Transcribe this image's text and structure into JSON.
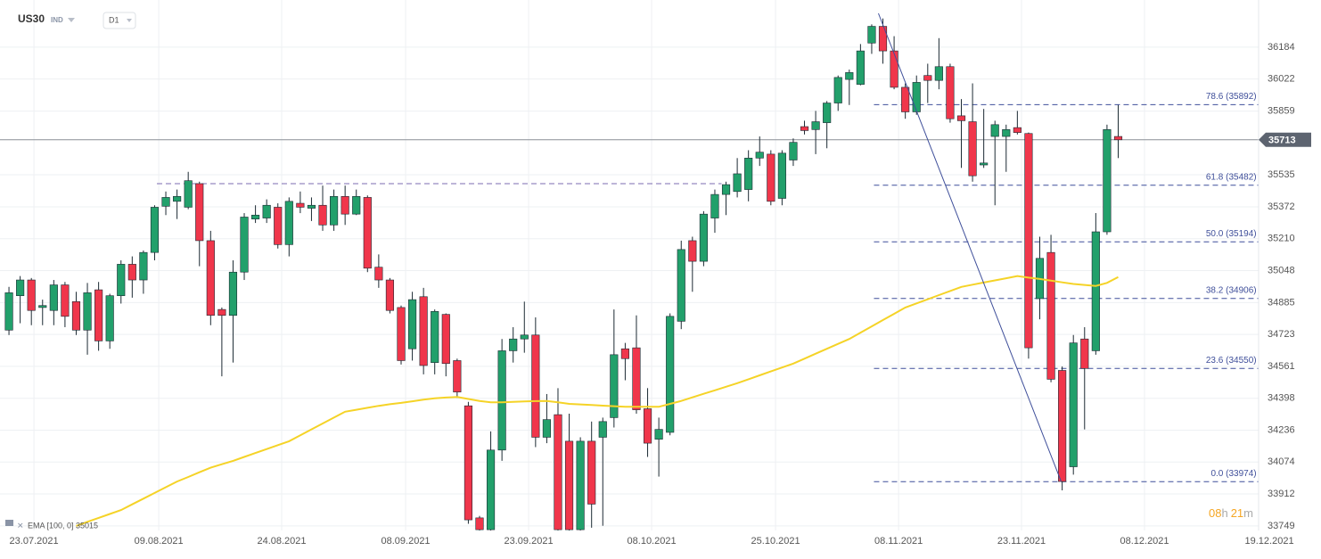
{
  "chart_data": {
    "type": "candlestick",
    "symbol": "US30",
    "symbol_type": "IND",
    "timeframe": "D1",
    "up_color": "#22a06b",
    "down_color": "#f0364b",
    "ylim": [
      33726,
      36424
    ],
    "yticks": [
      33749,
      33912,
      34074,
      34236,
      34398,
      34561,
      34723,
      34885,
      35048,
      35210,
      35372,
      35535,
      35859,
      36022,
      36184
    ],
    "xlim": [
      -0.8,
      117.1
    ],
    "xticks": [
      {
        "value": 2.23,
        "label": "23.07.2021"
      },
      {
        "value": 13.37,
        "label": "09.08.2021"
      },
      {
        "value": 24.34,
        "label": "24.08.2021"
      },
      {
        "value": 35.4,
        "label": "08.09.2021"
      },
      {
        "value": 46.38,
        "label": "23.09.2021"
      },
      {
        "value": 57.36,
        "label": "08.10.2021"
      },
      {
        "value": 68.42,
        "label": "25.10.2021"
      },
      {
        "value": 79.4,
        "label": "08.11.2021"
      },
      {
        "value": 90.37,
        "label": "23.11.2021"
      },
      {
        "value": 101.35,
        "label": "08.12.2021"
      },
      {
        "value": 112.49,
        "label": "19.12.2021"
      }
    ],
    "grid": true,
    "open": [
      34745,
      34920,
      35000,
      34860,
      34845,
      34975,
      34890,
      34745,
      34950,
      34690,
      34920,
      35080,
      35000,
      35140,
      35375,
      35400,
      35370,
      35490,
      35200,
      34850,
      34820,
      35040,
      35310,
      35315,
      35370,
      35180,
      35390,
      35365,
      35380,
      35280,
      35425,
      35335,
      35420,
      35065,
      35000,
      34860,
      34650,
      34915,
      34580,
      34825,
      34590,
      34360,
      33790,
      33730,
      34135,
      34640,
      34700,
      34720,
      34200,
      34315,
      34180,
      33730,
      34180,
      34200,
      34300,
      34650,
      34655,
      34345,
      34190,
      34225,
      34790,
      35200,
      35095,
      35315,
      35435,
      35450,
      35460,
      35620,
      35640,
      35415,
      35610,
      35780,
      35765,
      35800,
      35900,
      36020,
      35995,
      36205,
      36290,
      36165,
      35980,
      35855,
      36040,
      36015,
      36085,
      35835,
      35805,
      35585,
      35730,
      35730,
      35775,
      35745,
      34905,
      35140,
      34540,
      34050,
      34700,
      34640,
      35245,
      35730
    ],
    "high": [
      34965,
      35020,
      35010,
      34900,
      35000,
      34990,
      34940,
      34985,
      34990,
      34930,
      35100,
      35120,
      35150,
      35380,
      35450,
      35460,
      35550,
      35500,
      35250,
      34860,
      35100,
      35340,
      35380,
      35410,
      35390,
      35420,
      35450,
      35420,
      35480,
      35460,
      35480,
      35460,
      35430,
      35130,
      35010,
      34870,
      34940,
      34960,
      34850,
      34830,
      34600,
      34380,
      33800,
      34230,
      34700,
      34760,
      34890,
      34810,
      34420,
      34450,
      34320,
      34200,
      34280,
      34300,
      34850,
      34680,
      34820,
      34450,
      34300,
      34830,
      35200,
      35220,
      35350,
      35460,
      35500,
      35620,
      35660,
      35730,
      35660,
      35660,
      35720,
      35810,
      35860,
      35910,
      36040,
      36070,
      36200,
      36300,
      36330,
      36240,
      36000,
      36040,
      36100,
      36230,
      36100,
      35920,
      36000,
      35870,
      35810,
      35790,
      35860,
      35750,
      35220,
      35230,
      34560,
      34720,
      34760,
      35340,
      35790,
      35890
    ],
    "low": [
      34720,
      34780,
      34770,
      34770,
      34770,
      34760,
      34720,
      34620,
      34640,
      34650,
      34880,
      34910,
      34930,
      35100,
      35330,
      35310,
      35360,
      35070,
      34770,
      34510,
      34580,
      35000,
      35290,
      35290,
      35160,
      35120,
      35340,
      35300,
      35250,
      35250,
      35280,
      35330,
      35040,
      34960,
      34830,
      34570,
      34590,
      34520,
      34520,
      34510,
      34400,
      33760,
      33720,
      33720,
      34080,
      34580,
      34630,
      34150,
      34170,
      33720,
      33720,
      33720,
      33740,
      33750,
      34250,
      34490,
      34320,
      34100,
      34000,
      34210,
      34750,
      34940,
      35070,
      35240,
      35330,
      35420,
      35400,
      35580,
      35380,
      35380,
      35580,
      35740,
      35640,
      35670,
      35860,
      35890,
      35990,
      36150,
      36100,
      35970,
      35820,
      35840,
      35900,
      35970,
      35800,
      35570,
      35500,
      35570,
      35380,
      35550,
      35740,
      34600,
      34800,
      34480,
      33930,
      34010,
      34240,
      34620,
      35230,
      35620
    ],
    "close": [
      34935,
      35000,
      34845,
      34870,
      34975,
      34815,
      34745,
      34935,
      34690,
      34920,
      35080,
      35000,
      35140,
      35370,
      35420,
      35425,
      35505,
      35200,
      34820,
      34820,
      35040,
      35320,
      35330,
      35380,
      35180,
      35400,
      35370,
      35380,
      35280,
      35425,
      35335,
      35425,
      35060,
      35000,
      34845,
      34590,
      34900,
      34565,
      34840,
      34575,
      34430,
      33780,
      33730,
      34135,
      34640,
      34700,
      34720,
      34200,
      34290,
      33730,
      33730,
      34180,
      33860,
      34280,
      34620,
      34600,
      34340,
      34170,
      34240,
      34815,
      35155,
      35095,
      35335,
      35435,
      35485,
      35540,
      35620,
      35650,
      35400,
      35645,
      35700,
      35760,
      35805,
      35900,
      36030,
      36055,
      36165,
      36290,
      36165,
      35980,
      35855,
      36005,
      36015,
      36085,
      35820,
      35810,
      35530,
      35595,
      35790,
      35765,
      35750,
      34655,
      35110,
      34495,
      33975,
      34680,
      34550,
      35245,
      35765,
      35713
    ],
    "ema": {
      "label": "EMA [100, 0] 35015",
      "color": "#f5d327",
      "values": [
        null,
        null,
        null,
        null,
        null,
        null,
        33749,
        33770,
        33790,
        33810,
        33830,
        33859,
        33888,
        33917,
        33946,
        33975,
        33998,
        34022,
        34045,
        34063,
        34080,
        34100,
        34120,
        34140,
        34160,
        34180,
        34210,
        34240,
        34270,
        34300,
        34330,
        34340,
        34350,
        34360,
        34368,
        34375,
        34383,
        34391,
        34398,
        34402,
        34405,
        34395,
        34385,
        34378,
        34378,
        34380,
        34382,
        34384,
        34385,
        34378,
        34370,
        34367,
        34364,
        34361,
        34358,
        34355,
        34355,
        34355,
        34355,
        34370,
        34385,
        34403,
        34421,
        34439,
        34457,
        34475,
        34495,
        34515,
        34535,
        34555,
        34575,
        34600,
        34625,
        34650,
        34675,
        34700,
        34732,
        34764,
        34796,
        34828,
        34860,
        34881,
        34902,
        34923,
        34944,
        34965,
        34976,
        34987,
        34998,
        35009,
        35020,
        35012,
        35005,
        34997,
        34988,
        34980,
        34975,
        34970,
        34985,
        35015
      ]
    },
    "last_price": 35713,
    "resistance": {
      "value": 35490,
      "x": [
        13.2,
        63.6
      ],
      "color": "#7b6bb0"
    },
    "fib_x": [
      77.2,
      111.5
    ],
    "fib_levels": [
      {
        "value": 35892,
        "label": "78.6 (35892)"
      },
      {
        "value": 35482,
        "label": "61.8 (35482)"
      },
      {
        "value": 35194,
        "label": "50.0 (35194)"
      },
      {
        "value": 34906,
        "label": "38.2 (34906)"
      },
      {
        "value": 34550,
        "label": "23.6 (34550)"
      },
      {
        "value": 33974,
        "label": "0.0 (33974)"
      }
    ],
    "trendline": {
      "x": [
        77.6,
        93.9
      ],
      "y": [
        36356,
        33976
      ]
    },
    "countdown": {
      "hours": "08",
      "hours_unit": "h",
      "minutes": "21",
      "minutes_unit": "m"
    }
  }
}
